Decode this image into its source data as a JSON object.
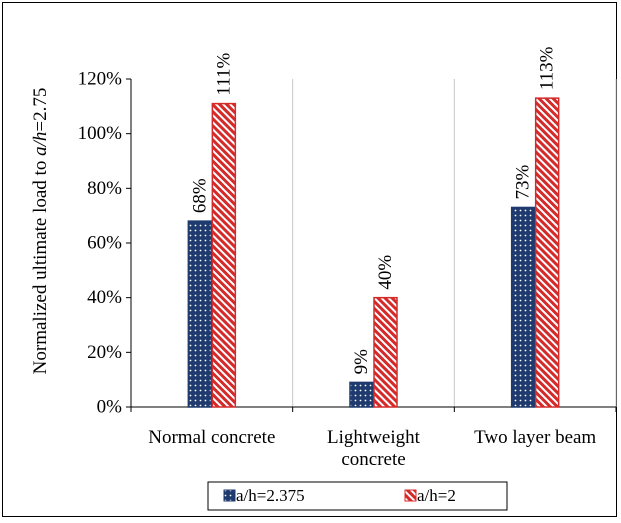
{
  "chart_data": {
    "type": "bar",
    "title": "",
    "xlabel": "",
    "ylabel_parts": [
      "Normalized ultimate load to ",
      "a/h",
      "=2.75"
    ],
    "categories": [
      [
        "Normal concrete"
      ],
      [
        "Lightweight",
        "concrete"
      ],
      [
        "Two layer beam"
      ]
    ],
    "series": [
      {
        "name": "a/h=2.375",
        "values": [
          68,
          9,
          73
        ],
        "labels": [
          "68%",
          "9%",
          "73%"
        ],
        "color": "#1f3a6e",
        "pattern": "dots"
      },
      {
        "name": "a/h=2",
        "values": [
          111,
          40,
          113
        ],
        "labels": [
          "111%",
          "40%",
          "113%"
        ],
        "color": "#d42a2a",
        "pattern": "diagonal-stripes"
      }
    ],
    "ylim": [
      0,
      120
    ],
    "yticks": [
      0,
      20,
      40,
      60,
      80,
      100,
      120
    ],
    "ytick_labels": [
      "0%",
      "20%",
      "40%",
      "60%",
      "80%",
      "100%",
      "120%"
    ],
    "grid": "vertical category separators",
    "legend": "bottom-center",
    "data_label_rotation": "vertical"
  }
}
